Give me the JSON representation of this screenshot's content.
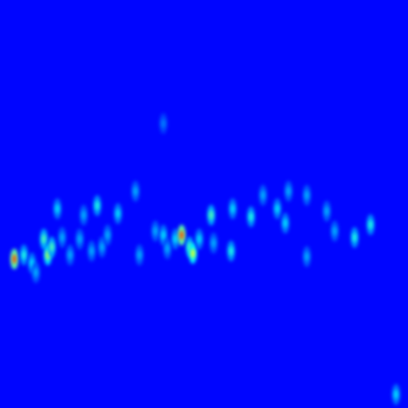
{
  "chart_data": {
    "type": "heatmap",
    "xlim": [
      0,
      512
    ],
    "ylim": [
      0,
      512
    ],
    "zlim": [
      0,
      1
    ],
    "background": 0.13,
    "tick_labels": false,
    "x": [
      18,
      30,
      40,
      45,
      55,
      60,
      65,
      72,
      78,
      88,
      100,
      105,
      115,
      122,
      128,
      135,
      148,
      170,
      175,
      195,
      205,
      210,
      220,
      228,
      238,
      242,
      250,
      265,
      268,
      290,
      292,
      315,
      330,
      348,
      358,
      362,
      385,
      385,
      410,
      420,
      445,
      465,
      205,
      497
    ],
    "y": [
      187,
      192,
      182,
      170,
      212,
      192,
      202,
      250,
      214,
      192,
      212,
      242,
      197,
      254,
      202,
      217,
      244,
      272,
      192,
      222,
      217,
      200,
      212,
      217,
      202,
      194,
      212,
      242,
      207,
      197,
      250,
      240,
      267,
      250,
      232,
      272,
      267,
      190,
      247,
      222,
      214,
      230,
      357,
      17
    ],
    "values": [
      0.8,
      0.4,
      0.35,
      0.3,
      0.45,
      0.55,
      0.45,
      0.35,
      0.3,
      0.3,
      0.3,
      0.3,
      0.3,
      0.4,
      0.3,
      0.3,
      0.35,
      0.3,
      0.3,
      0.3,
      0.35,
      0.3,
      0.35,
      0.8,
      0.45,
      0.6,
      0.35,
      0.45,
      0.3,
      0.4,
      0.35,
      0.4,
      0.3,
      0.35,
      0.35,
      0.3,
      0.3,
      0.3,
      0.3,
      0.3,
      0.4,
      0.4,
      0.25,
      0.35
    ]
  }
}
